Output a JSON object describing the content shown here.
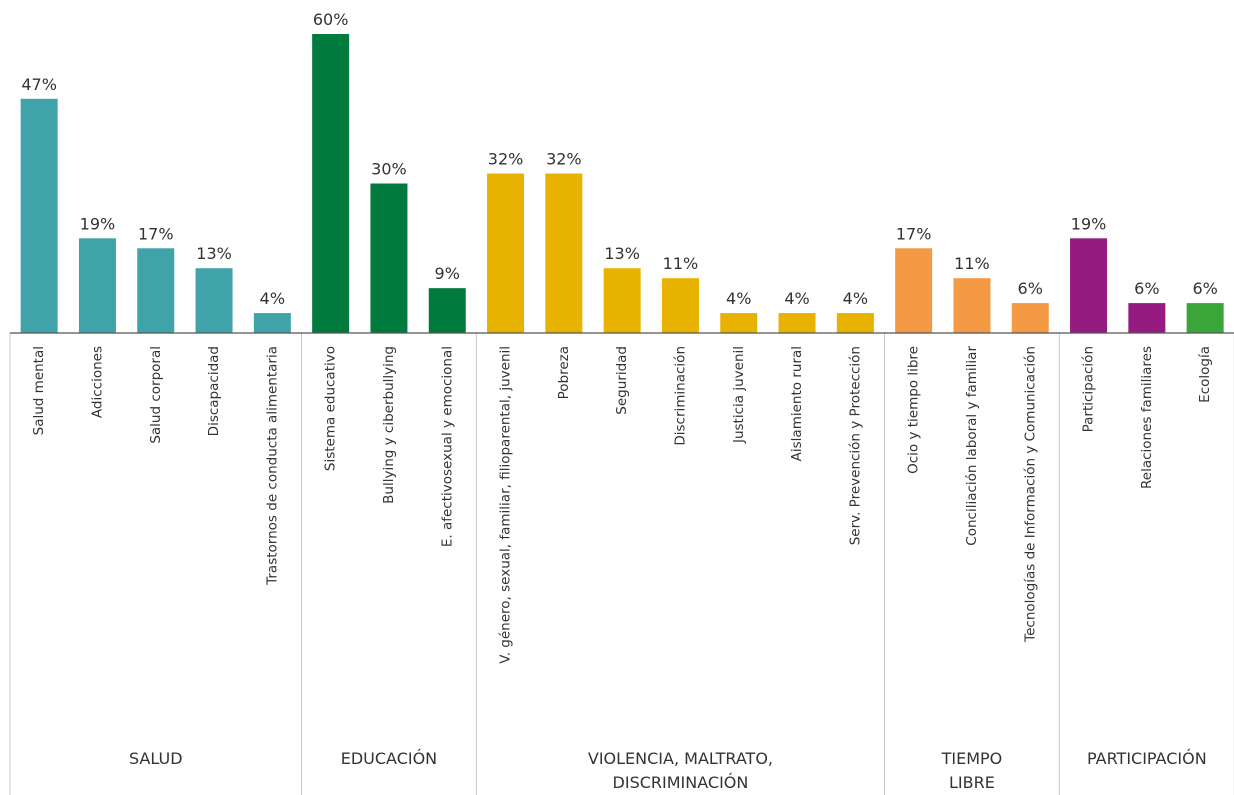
{
  "chart_data": {
    "type": "bar",
    "ylim": [
      0,
      60
    ],
    "groups": [
      {
        "label": [
          "SALUD"
        ],
        "categories": [
          "Salud mental",
          "Adicciones",
          "Salud corporal",
          "Discapacidad",
          "Trastornos de conducta alimentaria"
        ],
        "values": [
          47,
          19,
          17,
          13,
          4
        ],
        "value_labels": [
          "47%",
          "19%",
          "17%",
          "13%",
          "4%"
        ],
        "colors": [
          "#40a3a9",
          "#40a3a9",
          "#40a3a9",
          "#40a3a9",
          "#40a3a9"
        ]
      },
      {
        "label": [
          "EDUCACIÓN"
        ],
        "categories": [
          "Sistema educativo",
          "Bullying y ciberbullying",
          "E. afectivosexual y emocional"
        ],
        "values": [
          60,
          30,
          9
        ],
        "value_labels": [
          "60%",
          "30%",
          "9%"
        ],
        "colors": [
          "#007a3d",
          "#007a3d",
          "#007a3d"
        ]
      },
      {
        "label": [
          "VIOLENCIA, MALTRATO,",
          "DISCRIMINACIÓN"
        ],
        "categories": [
          "V. género, sexual, familiar, filioparental, juvenil",
          "Pobreza",
          "Seguridad",
          "Discriminación",
          "Justicia juvenil",
          "Aislamiento rural",
          "Serv. Prevención y Protección"
        ],
        "values": [
          32,
          32,
          13,
          11,
          4,
          4,
          4
        ],
        "value_labels": [
          "32%",
          "32%",
          "13%",
          "11%",
          "4%",
          "4%",
          "4%"
        ],
        "colors": [
          "#e8b300",
          "#e8b300",
          "#e8b300",
          "#e8b300",
          "#e8b300",
          "#e8b300",
          "#e8b300"
        ]
      },
      {
        "label": [
          "TIEMPO",
          "LIBRE"
        ],
        "categories": [
          "Ocio y tiempo libre",
          "Conciliación laboral y familiar",
          "Tecnologías de Información y Comunicación"
        ],
        "values": [
          17,
          11,
          6
        ],
        "value_labels": [
          "17%",
          "11%",
          "6%"
        ],
        "colors": [
          "#f49a44",
          "#f49a44",
          "#f49a44"
        ]
      },
      {
        "label": [
          "PARTICIPACIÓN"
        ],
        "categories": [
          "Participación",
          "Relaciones familiares",
          "Ecología"
        ],
        "values": [
          19,
          6,
          6
        ],
        "value_labels": [
          "19%",
          "6%",
          "6%"
        ],
        "colors": [
          "#961b80",
          "#961b80",
          "#3aa63a"
        ]
      }
    ]
  }
}
